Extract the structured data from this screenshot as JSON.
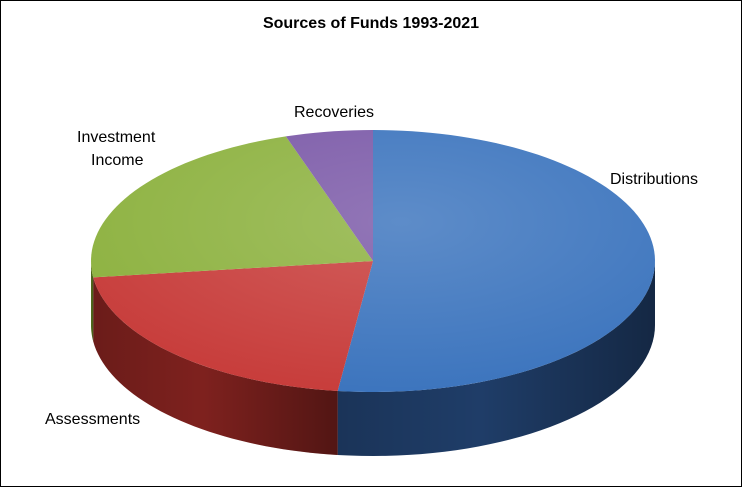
{
  "chart_data": {
    "type": "pie",
    "style": "3d",
    "title": "Sources of Funds 1993-2021",
    "categories": [
      "Distributions",
      "Assessments",
      "Investment Income",
      "Recoveries"
    ],
    "values": [
      52,
      21,
      22,
      5
    ],
    "unit": "%",
    "colors": [
      "#3a73bd",
      "#c73b39",
      "#8cb13e",
      "#7a58a7"
    ],
    "side_colors": [
      "#1f3d68",
      "#7e211e",
      "#56701f",
      "#4a3367"
    ],
    "labels": {
      "distributions": "Distributions",
      "assessments": "Assessments",
      "investment_line1": "Investment",
      "investment_line2": "Income",
      "recoveries": "Recoveries"
    },
    "start_angle_deg": 90,
    "direction": "clockwise"
  }
}
